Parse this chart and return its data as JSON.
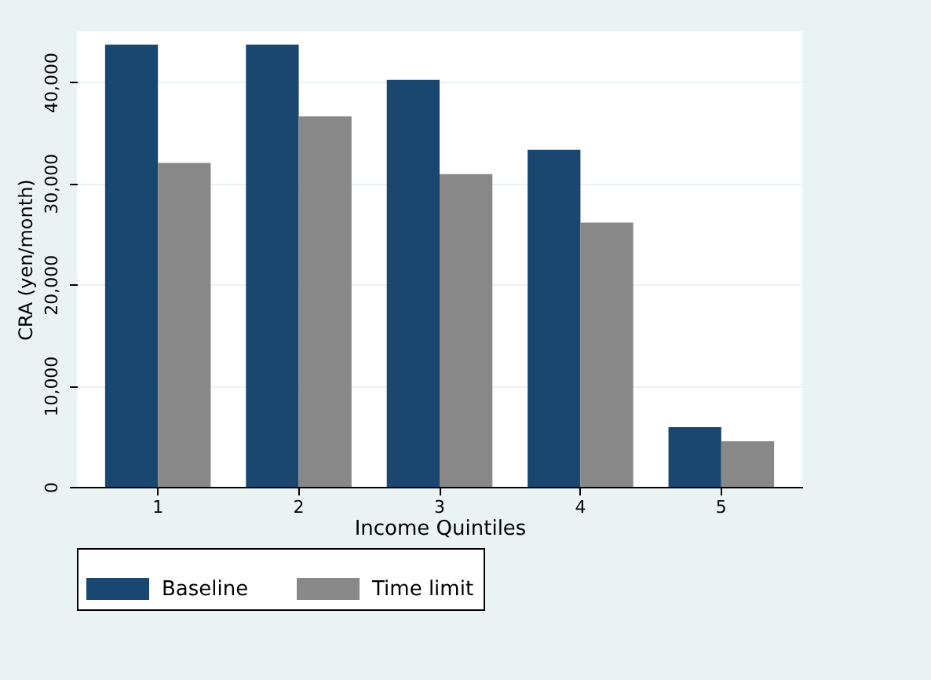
{
  "chart_data": {
    "type": "bar",
    "xlabel": "Income Quintiles",
    "ylabel": "CRA (yen/month)",
    "categories": [
      "1",
      "2",
      "3",
      "4",
      "5"
    ],
    "series": [
      {
        "name": "Baseline",
        "color": "#1a476f",
        "values": [
          43700,
          43700,
          40200,
          33300,
          5900
        ]
      },
      {
        "name": "Time limit",
        "color": "#888888",
        "values": [
          32000,
          36600,
          30900,
          26100,
          4500
        ]
      }
    ],
    "ylim": [
      0,
      45000
    ],
    "yticks": [
      {
        "value": 0,
        "label": "0"
      },
      {
        "value": 10000,
        "label": "10,000"
      },
      {
        "value": 20000,
        "label": "20,000"
      },
      {
        "value": 30000,
        "label": "30,000"
      },
      {
        "value": 40000,
        "label": "40,000"
      }
    ],
    "grid": "y",
    "legend": "bottom"
  }
}
